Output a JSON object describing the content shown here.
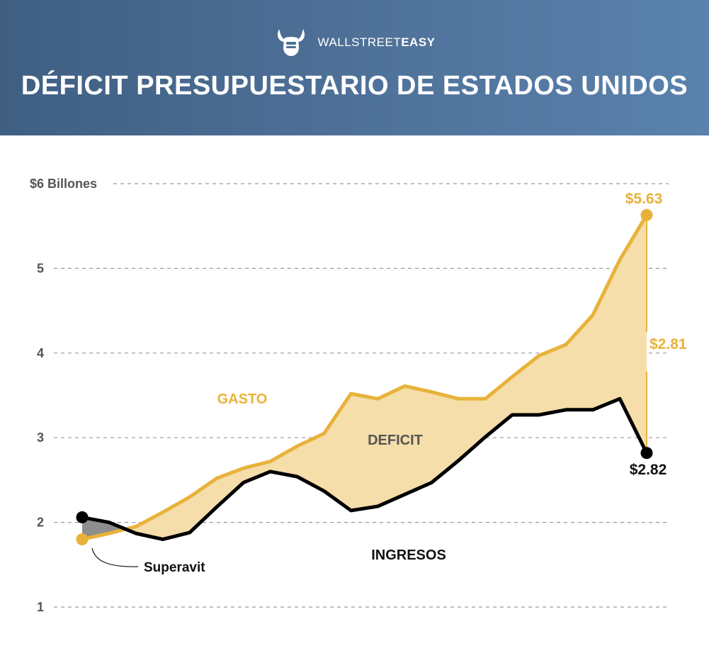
{
  "header": {
    "brand_prefix": "WALLSTREET",
    "brand_suffix": "EASY",
    "title": "DÉFICIT PRESUPUESTARIO DE ESTADOS UNIDOS",
    "logo_icon": "bull-fist-icon"
  },
  "colors": {
    "spending": "#e8b23a",
    "revenue": "#000000",
    "deficit_fill": "#f5deaa",
    "surplus_fill": "#8e8e8e",
    "header_start": "#3f5f82",
    "header_end": "#5a82ad",
    "grid": "#9a9a9a",
    "axis_text": "#555555"
  },
  "chart_data": {
    "type": "area",
    "ylim": [
      1,
      6
    ],
    "yticks": [
      {
        "value": 6,
        "label": "$6 Billones"
      },
      {
        "value": 5,
        "label": "5"
      },
      {
        "value": 4,
        "label": "4"
      },
      {
        "value": 3,
        "label": "3"
      },
      {
        "value": 2,
        "label": "2"
      },
      {
        "value": 1,
        "label": "1"
      }
    ],
    "grid": true,
    "series": [
      {
        "name": "GASTO",
        "points": [
          [
            0,
            1.8
          ],
          [
            1,
            1.87
          ],
          [
            2,
            1.95
          ],
          [
            3,
            2.12
          ],
          [
            4,
            2.3
          ],
          [
            5,
            2.52
          ],
          [
            6,
            2.64
          ],
          [
            7,
            2.72
          ],
          [
            8,
            2.9
          ],
          [
            9,
            3.05
          ],
          [
            10,
            3.52
          ],
          [
            11,
            3.46
          ],
          [
            12,
            3.61
          ],
          [
            13,
            3.54
          ],
          [
            14,
            3.46
          ],
          [
            15,
            3.46
          ],
          [
            16,
            3.72
          ],
          [
            17,
            3.97
          ],
          [
            18,
            4.1
          ],
          [
            19,
            4.45
          ],
          [
            20,
            5.1
          ],
          [
            21,
            5.63
          ]
        ]
      },
      {
        "name": "INGRESOS",
        "points": [
          [
            0,
            2.06
          ],
          [
            1,
            2.0
          ],
          [
            2,
            1.87
          ],
          [
            3,
            1.8
          ],
          [
            4,
            1.88
          ],
          [
            5,
            2.18
          ],
          [
            6,
            2.47
          ],
          [
            7,
            2.6
          ],
          [
            8,
            2.54
          ],
          [
            9,
            2.37
          ],
          [
            10,
            2.14
          ],
          [
            11,
            2.19
          ],
          [
            12,
            2.33
          ],
          [
            13,
            2.47
          ],
          [
            14,
            2.73
          ],
          [
            15,
            3.01
          ],
          [
            16,
            3.27
          ],
          [
            17,
            3.27
          ],
          [
            18,
            3.33
          ],
          [
            19,
            3.33
          ],
          [
            20,
            3.46
          ],
          [
            21,
            2.82
          ]
        ]
      }
    ],
    "labels": {
      "spending": "GASTO",
      "revenue": "INGRESOS",
      "deficit": "DEFICIT",
      "surplus": "Superavit",
      "end_spending": "$5.63",
      "end_revenue": "$2.82",
      "end_gap": "$2.81"
    }
  }
}
